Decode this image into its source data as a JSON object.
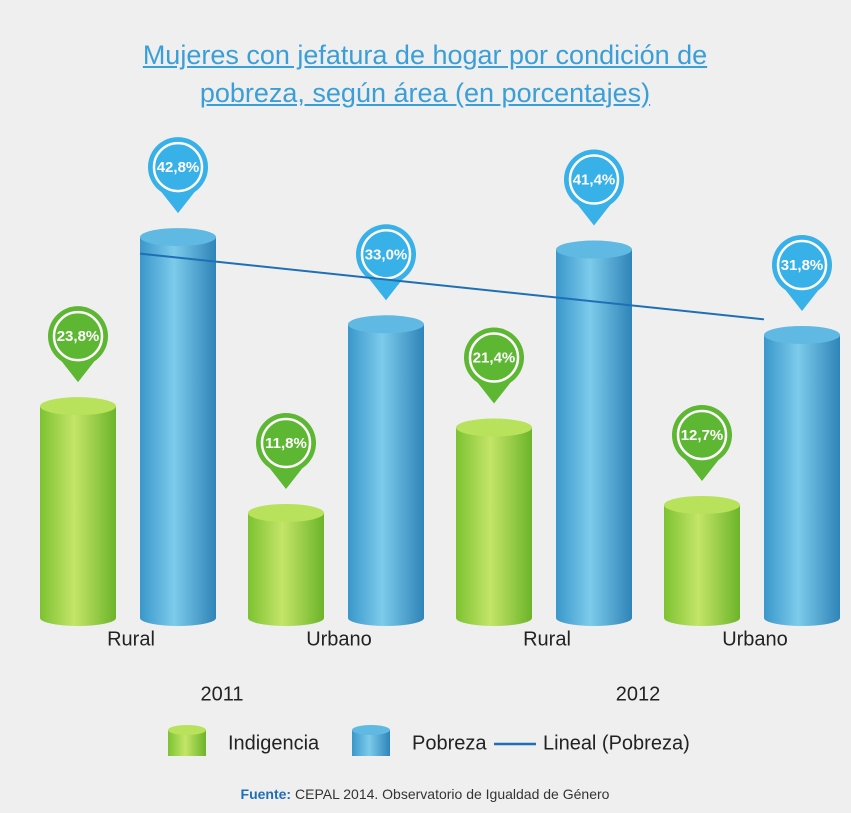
{
  "chart_data": {
    "type": "bar",
    "title": "Mujeres con jefatura de hogar por condición de pobreza, según área (en porcentajes)",
    "categories": [
      "Rural",
      "Urbano",
      "Rural",
      "Urbano"
    ],
    "groups": [
      "2011",
      "2012"
    ],
    "series": [
      {
        "name": "Indigencia",
        "color": "#8fcf3c",
        "values": [
          23.8,
          11.8,
          21.4,
          12.7
        ],
        "value_labels": [
          "23,8%",
          "11,8%",
          "21,4%",
          "12,7%"
        ]
      },
      {
        "name": "Pobreza",
        "color": "#4aa8d8",
        "values": [
          42.8,
          33.0,
          41.4,
          31.8
        ],
        "value_labels": [
          "42,8%",
          "33,0%",
          "41,4%",
          "31,8%"
        ]
      }
    ],
    "trendline": {
      "name": "Lineal (Pobreza)",
      "color": "#1f6fb4"
    },
    "source_label": "Fuente:",
    "source": "CEPAL 2014. Observatorio de Igualdad de Género"
  }
}
